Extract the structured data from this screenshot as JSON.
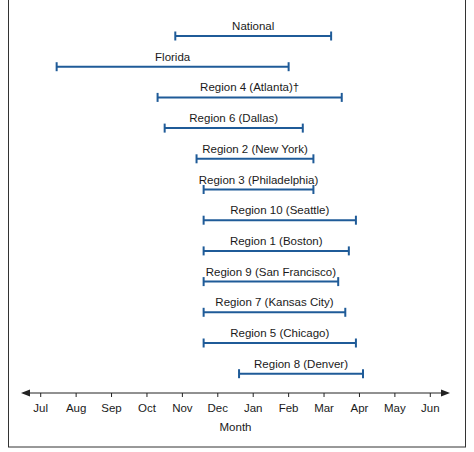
{
  "chart_data": {
    "type": "range",
    "orientation": "horizontal",
    "color": "#1f5b98",
    "x_label": "Month",
    "xlim": [
      -0.5,
      11.5
    ],
    "xticks": [
      {
        "value": 0,
        "label": "Jul"
      },
      {
        "value": 1,
        "label": "Aug"
      },
      {
        "value": 2,
        "label": "Sep"
      },
      {
        "value": 3,
        "label": "Oct"
      },
      {
        "value": 4,
        "label": "Nov"
      },
      {
        "value": 5,
        "label": "Dec"
      },
      {
        "value": 6,
        "label": "Jan"
      },
      {
        "value": 7,
        "label": "Feb"
      },
      {
        "value": 8,
        "label": "Mar"
      },
      {
        "value": 9,
        "label": "Apr"
      },
      {
        "value": 10,
        "label": "May"
      },
      {
        "value": 11,
        "label": "Jun"
      }
    ],
    "categories": [
      "National",
      "Florida",
      "Region 4 (Atlanta)†",
      "Region 6 (Dallas)",
      "Region 2 (New York)",
      "Region 3 (Philadelphia)",
      "Region 10 (Seattle)",
      "Region 1 (Boston)",
      "Region 9 (San Francisco)",
      "Region 7 (Kansas City)",
      "Region 5 (Chicago)",
      "Region 8 (Denver)"
    ],
    "start": [
      3.8,
      0.45,
      3.3,
      3.5,
      4.4,
      4.6,
      4.6,
      4.6,
      4.6,
      4.6,
      4.6,
      5.6
    ],
    "end": [
      8.2,
      7.0,
      8.5,
      7.4,
      7.7,
      7.7,
      8.9,
      8.7,
      8.4,
      8.6,
      8.9,
      9.1
    ]
  }
}
